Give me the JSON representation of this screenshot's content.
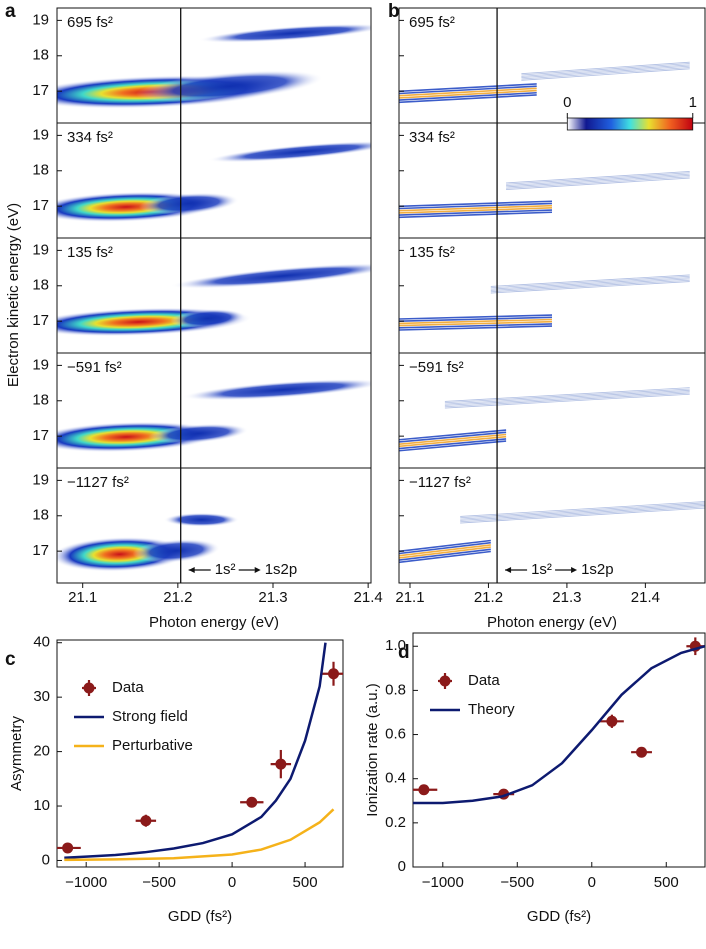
{
  "chart_data": [
    {
      "type": "spectrogram",
      "panel_label": "a",
      "xlabel": "Photon energy (eV)",
      "ylabel": "Electron kinetic energy (eV)",
      "xlim": [
        21.073,
        21.403
      ],
      "xticks": [
        21.1,
        21.2,
        21.3,
        21.4
      ],
      "ylim": [
        16.1,
        19.35
      ],
      "yticks": [
        17,
        18,
        19
      ],
      "ytick_labels": true,
      "subplots": [
        "695 fs²",
        "334 fs²",
        "135 fs²",
        "−591 fs²",
        "−1127 fs²"
      ],
      "marker_line": 21.203,
      "annotations": [
        "1s²",
        "1s2p"
      ]
    },
    {
      "type": "spectrogram",
      "panel_label": "b",
      "xlabel": "Photon energy (eV)",
      "xlim": [
        21.086,
        21.476
      ],
      "xticks": [
        21.1,
        21.2,
        21.3,
        21.4
      ],
      "ylim": [
        16.1,
        19.35
      ],
      "yticks": [
        17,
        18,
        19
      ],
      "ytick_labels": false,
      "subplots": [
        "695 fs²",
        "334 fs²",
        "135 fs²",
        "−591 fs²",
        "−1127 fs²"
      ],
      "marker_line": 21.211,
      "annotations": [
        "1s²",
        "1s2p"
      ],
      "colorbar": {
        "ticks": [
          0,
          1
        ]
      }
    },
    {
      "type": "errorbar",
      "panel_label": "c",
      "xlabel": "GDD (fs²)",
      "ylabel": "Asymmetry",
      "legend": "upper left",
      "xlim": [
        -1200,
        760
      ],
      "xticks": [
        {
          "value": -1000,
          "label": "−1000"
        },
        {
          "value": -500,
          "label": "−500"
        },
        0,
        500
      ],
      "ylim": [
        -1.2,
        40.5
      ],
      "yticks": [
        0,
        10,
        20,
        30,
        40
      ],
      "series": [
        {
          "name": "Data",
          "kind": "points",
          "color": "#8b1a1a",
          "x": [
            -1127,
            -591,
            135,
            334,
            695
          ],
          "values": [
            2.3,
            7.3,
            10.7,
            17.7,
            34.3
          ],
          "xerr": [
            90,
            70,
            80,
            70,
            80
          ],
          "yerr": [
            0.6,
            1.1,
            0.6,
            2.6,
            2.2
          ]
        },
        {
          "name": "Strong field",
          "kind": "line",
          "color": "#0d1a70",
          "x": [
            -1150,
            -1000,
            -800,
            -600,
            -400,
            -200,
            0,
            200,
            300,
            400,
            500,
            600,
            640
          ],
          "values": [
            0.5,
            0.7,
            1.0,
            1.5,
            2.2,
            3.2,
            4.8,
            8,
            11,
            15,
            22,
            32,
            40
          ]
        },
        {
          "name": "Perturbative",
          "kind": "line",
          "color": "#f5b21a",
          "x": [
            -1150,
            -800,
            -400,
            0,
            200,
            400,
            600,
            695
          ],
          "values": [
            0.1,
            0.2,
            0.4,
            1.1,
            2,
            3.8,
            7,
            9.4
          ]
        }
      ]
    },
    {
      "type": "errorbar",
      "panel_label": "d",
      "xlabel": "GDD (fs²)",
      "ylabel": "Ionization rate (a.u.)",
      "legend": "upper left",
      "xlim": [
        -1200,
        760
      ],
      "xticks": [
        {
          "value": -1000,
          "label": "−1000"
        },
        {
          "value": -500,
          "label": "−500"
        },
        0,
        500
      ],
      "ylim": [
        0,
        1.06
      ],
      "yticks": [
        0,
        0.2,
        0.4,
        0.6,
        0.8,
        {
          "value": 1,
          "label": "1.0"
        }
      ],
      "series": [
        {
          "name": "Data",
          "kind": "points",
          "color": "#8b1a1a",
          "x": [
            -1127,
            -591,
            135,
            334,
            695
          ],
          "values": [
            0.35,
            0.33,
            0.66,
            0.52,
            1.0
          ],
          "xerr": [
            90,
            70,
            80,
            70,
            60
          ],
          "yerr": [
            0.02,
            0.02,
            0.03,
            0.02,
            0.04
          ]
        },
        {
          "name": "Theory",
          "kind": "line",
          "color": "#0d1a70",
          "x": [
            -1200,
            -1000,
            -800,
            -600,
            -400,
            -200,
            0,
            200,
            400,
            600,
            760
          ],
          "values": [
            0.29,
            0.29,
            0.3,
            0.32,
            0.37,
            0.47,
            0.62,
            0.78,
            0.9,
            0.97,
            1.0
          ]
        }
      ]
    }
  ]
}
